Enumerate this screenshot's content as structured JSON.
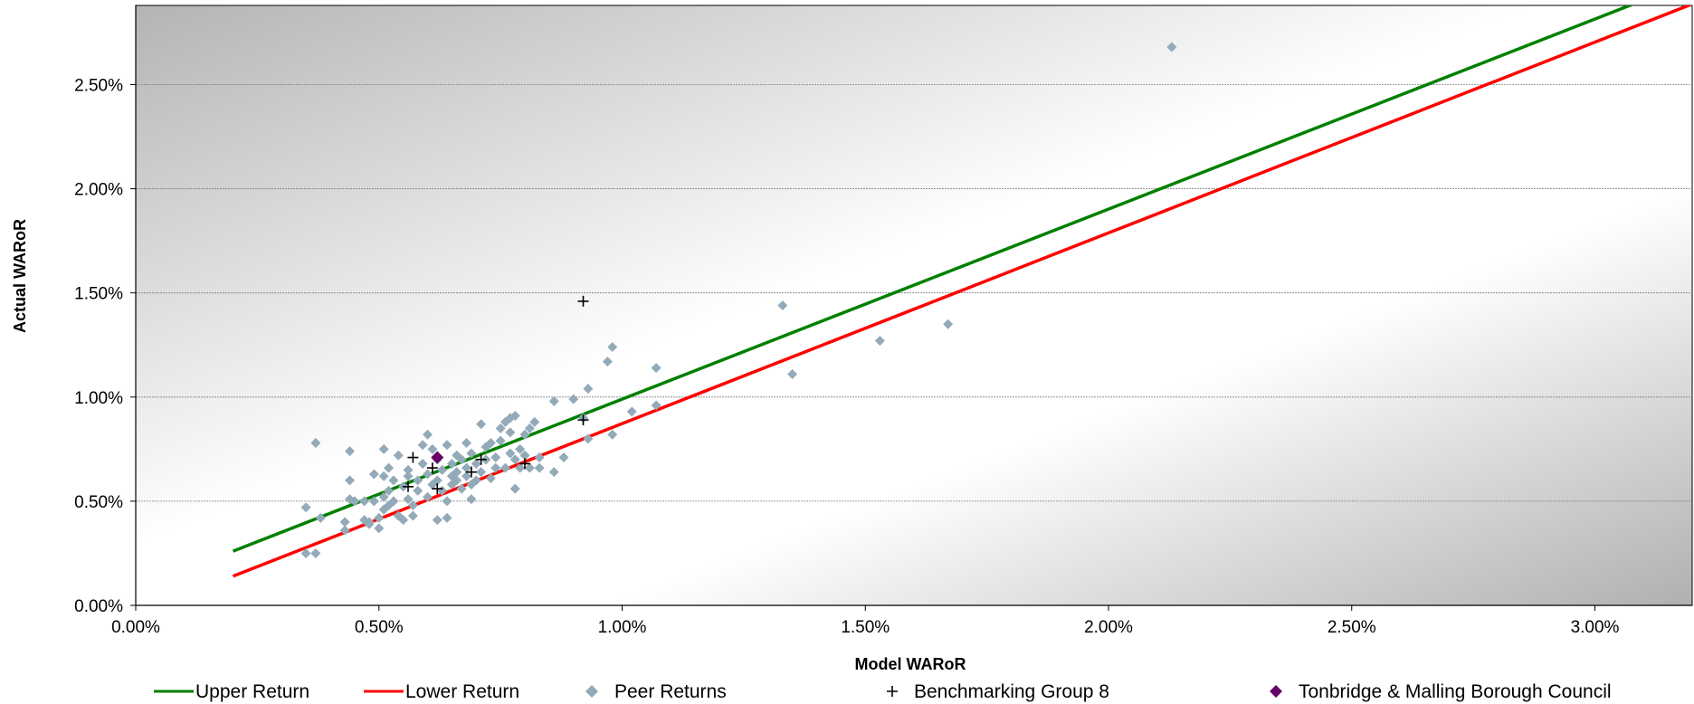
{
  "chart_data": {
    "type": "scatter",
    "xlabel": "Model WARoR",
    "ylabel": "Actual WARoR",
    "xlim": [
      0,
      0.032
    ],
    "ylim": [
      0,
      0.0288
    ],
    "x_ticks": [
      0,
      0.005,
      0.01,
      0.015,
      0.02,
      0.025,
      0.03
    ],
    "x_tick_labels": [
      "0.00%",
      "0.50%",
      "1.00%",
      "1.50%",
      "2.00%",
      "2.50%",
      "3.00%"
    ],
    "y_ticks": [
      0,
      0.005,
      0.01,
      0.015,
      0.02,
      0.025
    ],
    "y_tick_labels": [
      "0.00%",
      "0.50%",
      "1.00%",
      "1.50%",
      "2.00%",
      "2.50%"
    ],
    "grid": "horizontal",
    "legend_position": "bottom",
    "colors": {
      "upper": "#008000",
      "lower": "#ff0000",
      "peer": "#93aab8",
      "benchmark": "#000000",
      "council": "#660066",
      "plot_bg_dark": "#b4b4b4",
      "plot_bg_light": "#ffffff"
    },
    "series": [
      {
        "name": "Upper Return",
        "kind": "line",
        "x": [
          0.002,
          0.0328
        ],
        "y": [
          0.0026,
          0.0307
        ]
      },
      {
        "name": "Lower Return",
        "kind": "line",
        "x": [
          0.002,
          0.0328
        ],
        "y": [
          0.0014,
          0.0296
        ]
      },
      {
        "name": "Peer Returns",
        "kind": "scatter",
        "marker": "diamond",
        "points": [
          [
            0.0037,
            0.0078
          ],
          [
            0.0035,
            0.0047
          ],
          [
            0.0038,
            0.0042
          ],
          [
            0.0035,
            0.0025
          ],
          [
            0.0037,
            0.0025
          ],
          [
            0.0044,
            0.0074
          ],
          [
            0.0044,
            0.006
          ],
          [
            0.0044,
            0.0051
          ],
          [
            0.0043,
            0.004
          ],
          [
            0.0043,
            0.0036
          ],
          [
            0.0045,
            0.005
          ],
          [
            0.0047,
            0.005
          ],
          [
            0.0047,
            0.0041
          ],
          [
            0.0048,
            0.004
          ],
          [
            0.0048,
            0.0039
          ],
          [
            0.0049,
            0.0063
          ],
          [
            0.0049,
            0.005
          ],
          [
            0.005,
            0.0042
          ],
          [
            0.005,
            0.0037
          ],
          [
            0.0051,
            0.0075
          ],
          [
            0.0051,
            0.0062
          ],
          [
            0.0051,
            0.0052
          ],
          [
            0.0051,
            0.0046
          ],
          [
            0.0052,
            0.0066
          ],
          [
            0.0052,
            0.0055
          ],
          [
            0.0052,
            0.0048
          ],
          [
            0.0053,
            0.006
          ],
          [
            0.0053,
            0.005
          ],
          [
            0.0054,
            0.0072
          ],
          [
            0.0054,
            0.0043
          ],
          [
            0.0055,
            0.0057
          ],
          [
            0.0055,
            0.0041
          ],
          [
            0.0056,
            0.0065
          ],
          [
            0.0056,
            0.0062
          ],
          [
            0.0056,
            0.0051
          ],
          [
            0.0057,
            0.0048
          ],
          [
            0.0057,
            0.0043
          ],
          [
            0.0058,
            0.006
          ],
          [
            0.0058,
            0.0055
          ],
          [
            0.0059,
            0.0077
          ],
          [
            0.0059,
            0.0068
          ],
          [
            0.006,
            0.0082
          ],
          [
            0.006,
            0.0063
          ],
          [
            0.006,
            0.0052
          ],
          [
            0.0061,
            0.0058
          ],
          [
            0.0061,
            0.0075
          ],
          [
            0.0062,
            0.0041
          ],
          [
            0.0062,
            0.006
          ],
          [
            0.0062,
            0.007
          ],
          [
            0.0063,
            0.0065
          ],
          [
            0.0063,
            0.0055
          ],
          [
            0.0064,
            0.0077
          ],
          [
            0.0064,
            0.0042
          ],
          [
            0.0064,
            0.005
          ],
          [
            0.0065,
            0.0062
          ],
          [
            0.0065,
            0.0068
          ],
          [
            0.0065,
            0.0058
          ],
          [
            0.0066,
            0.0072
          ],
          [
            0.0066,
            0.006
          ],
          [
            0.0066,
            0.0064
          ],
          [
            0.0067,
            0.007
          ],
          [
            0.0067,
            0.0056
          ],
          [
            0.0068,
            0.0066
          ],
          [
            0.0068,
            0.0062
          ],
          [
            0.0068,
            0.0078
          ],
          [
            0.0069,
            0.0073
          ],
          [
            0.0069,
            0.0058
          ],
          [
            0.0069,
            0.0051
          ],
          [
            0.007,
            0.0068
          ],
          [
            0.007,
            0.006
          ],
          [
            0.0071,
            0.0087
          ],
          [
            0.0071,
            0.0064
          ],
          [
            0.0072,
            0.0076
          ],
          [
            0.0072,
            0.007
          ],
          [
            0.0073,
            0.0061
          ],
          [
            0.0073,
            0.0078
          ],
          [
            0.0074,
            0.0066
          ],
          [
            0.0074,
            0.0071
          ],
          [
            0.0075,
            0.0079
          ],
          [
            0.0075,
            0.0085
          ],
          [
            0.0076,
            0.0088
          ],
          [
            0.0076,
            0.0066
          ],
          [
            0.0077,
            0.009
          ],
          [
            0.0077,
            0.0083
          ],
          [
            0.0077,
            0.0073
          ],
          [
            0.0078,
            0.0091
          ],
          [
            0.0078,
            0.0056
          ],
          [
            0.0078,
            0.007
          ],
          [
            0.0079,
            0.0075
          ],
          [
            0.0079,
            0.0066
          ],
          [
            0.008,
            0.0082
          ],
          [
            0.008,
            0.0072
          ],
          [
            0.0081,
            0.0085
          ],
          [
            0.0081,
            0.0066
          ],
          [
            0.0082,
            0.0088
          ],
          [
            0.0083,
            0.0071
          ],
          [
            0.0083,
            0.0066
          ],
          [
            0.0086,
            0.0098
          ],
          [
            0.0086,
            0.0064
          ],
          [
            0.0088,
            0.0071
          ],
          [
            0.009,
            0.0099
          ],
          [
            0.0092,
            0.009
          ],
          [
            0.0093,
            0.0104
          ],
          [
            0.0093,
            0.008
          ],
          [
            0.0097,
            0.0117
          ],
          [
            0.0098,
            0.0124
          ],
          [
            0.0098,
            0.0082
          ],
          [
            0.0102,
            0.0093
          ],
          [
            0.0107,
            0.0114
          ],
          [
            0.0107,
            0.0096
          ],
          [
            0.0133,
            0.0144
          ],
          [
            0.0135,
            0.0111
          ],
          [
            0.0153,
            0.0127
          ],
          [
            0.0167,
            0.0135
          ],
          [
            0.0213,
            0.0268
          ]
        ]
      },
      {
        "name": "Benchmarking Group 8",
        "kind": "scatter",
        "marker": "plus",
        "points": [
          [
            0.0056,
            0.0057
          ],
          [
            0.0057,
            0.0071
          ],
          [
            0.0061,
            0.0066
          ],
          [
            0.0062,
            0.0056
          ],
          [
            0.0069,
            0.0064
          ],
          [
            0.0071,
            0.007
          ],
          [
            0.008,
            0.0068
          ],
          [
            0.0092,
            0.0089
          ],
          [
            0.0092,
            0.0146
          ]
        ]
      },
      {
        "name": "Tonbridge & Malling Borough Council",
        "kind": "scatter",
        "marker": "diamond",
        "points": [
          [
            0.0062,
            0.0071
          ]
        ]
      }
    ]
  }
}
